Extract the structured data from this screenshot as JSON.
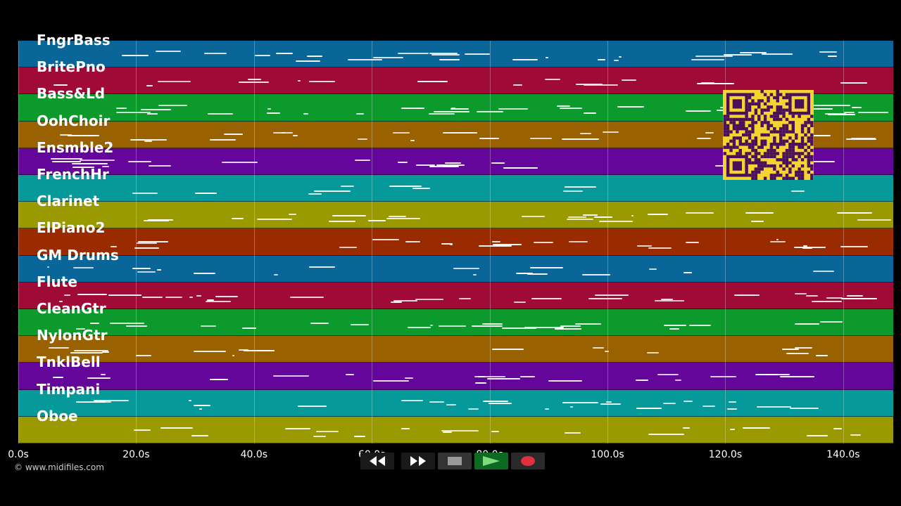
{
  "tracks": [
    {
      "name": "FngrBass",
      "color": "#0a6598"
    },
    {
      "name": "BritePno",
      "color": "#a00a36"
    },
    {
      "name": "Bass&Ld",
      "color": "#0c9a2c"
    },
    {
      "name": "OohChoir",
      "color": "#9a6100"
    },
    {
      "name": "Ensmble2",
      "color": "#64069a"
    },
    {
      "name": "FrenchHr",
      "color": "#05999a"
    },
    {
      "name": "Clarinet",
      "color": "#9a9a00"
    },
    {
      "name": "ElPiano2",
      "color": "#9a2a00"
    },
    {
      "name": "GM Drums",
      "color": "#0a6598"
    },
    {
      "name": "Flute",
      "color": "#a00a36"
    },
    {
      "name": "CleanGtr",
      "color": "#0c9a2c"
    },
    {
      "name": "NylonGtr",
      "color": "#9a6100"
    },
    {
      "name": "TnklBell",
      "color": "#64069a"
    },
    {
      "name": "Timpani",
      "color": "#05999a"
    },
    {
      "name": "Oboe",
      "color": "#9a9a00"
    }
  ],
  "time_axis": {
    "max_seconds": 148.5,
    "ticks": [
      "0.0s",
      "20.0s",
      "40.0s",
      "60.0s",
      "80.0s",
      "100.0s",
      "120.0s",
      "140.0s"
    ]
  },
  "copyright": "© www.midifiles.com",
  "transport": {
    "rewind_icon": "rewind-icon",
    "fast_forward_icon": "fast-forward-icon",
    "stop_icon": "stop-icon",
    "play_icon": "play-icon",
    "record_icon": "record-icon"
  },
  "qr_icon": "qr-code-icon"
}
